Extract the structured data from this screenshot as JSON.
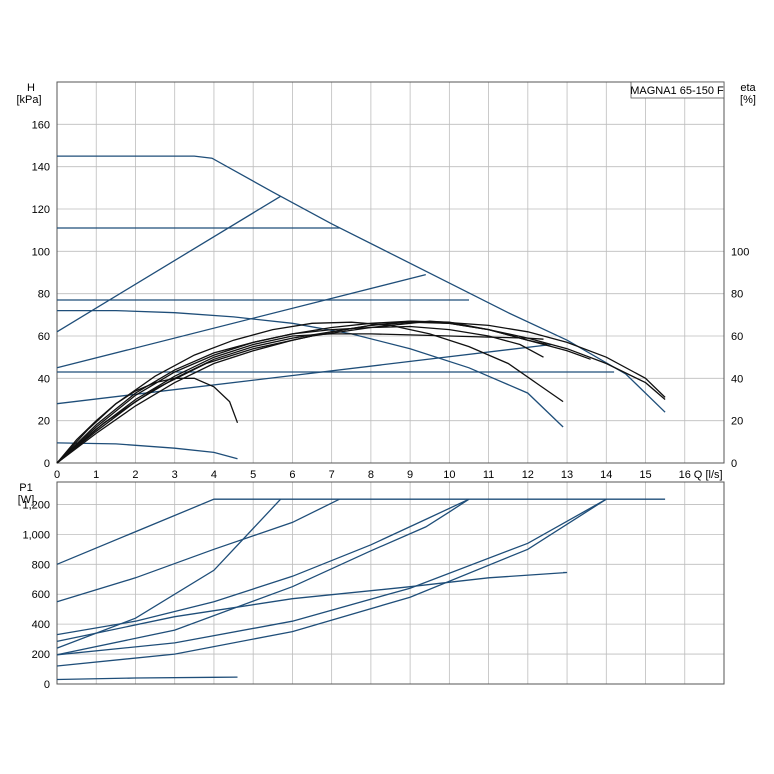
{
  "chart_data": [
    {
      "type": "line",
      "model_label": "MAGNA1 65-150 F",
      "ylabel": "H",
      "yunit": "[kPa]",
      "y2label": "eta",
      "y2unit": "[%]",
      "xlabel": "Q",
      "xunit": "[l/s]",
      "xlim": [
        0,
        17
      ],
      "ylim": [
        0,
        180
      ],
      "y2lim": [
        0,
        180
      ],
      "xticks": [
        0,
        1,
        2,
        3,
        4,
        5,
        6,
        7,
        8,
        9,
        10,
        11,
        12,
        13,
        14,
        15,
        16
      ],
      "yticks": [
        0,
        20,
        40,
        60,
        80,
        100,
        120,
        140,
        160
      ],
      "y2ticks": [
        0,
        20,
        40,
        60,
        80,
        100
      ],
      "head_series": [
        {
          "points": [
            [
              0,
              145
            ],
            [
              3.5,
              145
            ],
            [
              3.95,
              144
            ],
            [
              5.5,
              128
            ],
            [
              7,
              113
            ],
            [
              8.5,
              99
            ],
            [
              10,
              85
            ],
            [
              11.5,
              71
            ],
            [
              13,
              58
            ],
            [
              14.5,
              42
            ],
            [
              15.5,
              24
            ]
          ]
        },
        {
          "points": [
            [
              0,
              111
            ],
            [
              7.2,
              111
            ]
          ]
        },
        {
          "points": [
            [
              0,
              77
            ],
            [
              10.5,
              77
            ]
          ]
        },
        {
          "points": [
            [
              0,
              43
            ],
            [
              14.2,
              43
            ]
          ]
        },
        {
          "points": [
            [
              0,
              72
            ],
            [
              1.5,
              72
            ],
            [
              3,
              71
            ],
            [
              4.5,
              69
            ],
            [
              6,
              66
            ],
            [
              7.5,
              61
            ],
            [
              9,
              54
            ],
            [
              10.5,
              45
            ],
            [
              12,
              33
            ],
            [
              12.9,
              17
            ]
          ]
        },
        {
          "points": [
            [
              0,
              9.5
            ],
            [
              1.5,
              9
            ],
            [
              3,
              7
            ],
            [
              4,
              5
            ],
            [
              4.6,
              2
            ]
          ]
        },
        {
          "points": [
            [
              0,
              62
            ],
            [
              5.7,
              126
            ]
          ]
        },
        {
          "points": [
            [
              0,
              45
            ],
            [
              9.4,
              89
            ]
          ]
        },
        {
          "points": [
            [
              0,
              28
            ],
            [
              12.6,
              56
            ]
          ]
        }
      ],
      "eta_series": [
        {
          "points": [
            [
              0,
              0
            ],
            [
              0.5,
              11
            ],
            [
              1,
              20
            ],
            [
              1.5,
              28
            ],
            [
              2,
              34
            ],
            [
              2.5,
              38
            ],
            [
              3,
              40
            ],
            [
              3.5,
              40
            ],
            [
              4,
              36
            ],
            [
              4.4,
              29
            ],
            [
              4.6,
              19
            ]
          ]
        },
        {
          "points": [
            [
              0,
              0
            ],
            [
              0.8,
              16
            ],
            [
              1.5,
              28
            ],
            [
              2.5,
              41
            ],
            [
              3.5,
              51
            ],
            [
              4.5,
              58
            ],
            [
              5.5,
              63
            ],
            [
              6.5,
              66
            ],
            [
              7.5,
              66.5
            ],
            [
              8.5,
              65
            ],
            [
              9.5,
              61
            ],
            [
              10.5,
              55
            ],
            [
              11.5,
              47
            ],
            [
              12.2,
              38
            ],
            [
              12.9,
              29
            ]
          ]
        },
        {
          "points": [
            [
              0,
              0
            ],
            [
              1,
              18
            ],
            [
              2,
              33
            ],
            [
              3,
              44
            ],
            [
              4,
              52
            ],
            [
              5,
              57
            ],
            [
              6,
              61
            ],
            [
              7,
              63
            ],
            [
              8,
              64
            ],
            [
              9,
              64.5
            ],
            [
              10,
              63
            ],
            [
              11,
              60
            ],
            [
              11.8,
              56
            ],
            [
              12.4,
              50
            ]
          ]
        },
        {
          "points": [
            [
              0,
              0
            ],
            [
              1,
              17
            ],
            [
              2,
              32
            ],
            [
              3,
              43
            ],
            [
              4,
              51
            ],
            [
              5,
              57
            ],
            [
              6,
              61
            ],
            [
              7,
              64
            ],
            [
              8,
              66
            ],
            [
              9,
              67
            ],
            [
              10,
              66
            ],
            [
              11,
              63
            ],
            [
              12,
              58
            ],
            [
              12.5,
              56
            ]
          ]
        },
        {
          "points": [
            [
              0,
              0
            ],
            [
              1,
              16
            ],
            [
              2,
              30
            ],
            [
              3,
              41
            ],
            [
              4,
              50
            ],
            [
              5,
              56
            ],
            [
              6,
              60
            ],
            [
              7,
              61
            ],
            [
              8,
              61
            ],
            [
              9,
              60.5
            ],
            [
              10,
              60
            ],
            [
              11,
              59.5
            ],
            [
              12,
              59
            ],
            [
              12.4,
              58.5
            ]
          ]
        },
        {
          "points": [
            [
              0,
              0
            ],
            [
              1,
              15
            ],
            [
              2,
              29
            ],
            [
              3,
              40
            ],
            [
              4,
              49
            ],
            [
              5,
              55
            ],
            [
              6,
              59
            ],
            [
              7,
              62
            ],
            [
              8,
              65
            ],
            [
              9,
              67
            ],
            [
              10,
              66.5
            ],
            [
              11,
              63
            ],
            [
              12,
              58
            ],
            [
              13,
              53
            ],
            [
              13.6,
              49
            ]
          ]
        },
        {
          "points": [
            [
              0,
              0
            ],
            [
              1.2,
              19
            ],
            [
              2.5,
              35
            ],
            [
              3.8,
              47
            ],
            [
              5,
              54
            ],
            [
              6.5,
              60
            ],
            [
              8,
              64
            ],
            [
              9.5,
              67
            ],
            [
              11,
              65
            ],
            [
              12,
              62
            ],
            [
              13,
              57
            ],
            [
              14,
              50
            ],
            [
              15,
              40
            ],
            [
              15.5,
              31
            ]
          ]
        },
        {
          "points": [
            [
              0,
              0
            ],
            [
              1,
              14
            ],
            [
              2,
              27
            ],
            [
              3,
              38
            ],
            [
              4,
              47
            ],
            [
              5,
              53
            ],
            [
              6,
              58
            ],
            [
              7,
              62
            ],
            [
              8,
              65
            ],
            [
              9,
              66.5
            ],
            [
              10,
              66
            ],
            [
              11,
              63
            ],
            [
              12,
              59
            ],
            [
              13,
              54
            ],
            [
              14,
              47
            ],
            [
              15,
              38
            ],
            [
              15.5,
              30
            ]
          ]
        }
      ]
    },
    {
      "type": "line",
      "ylabel": "P1",
      "yunit": "[W]",
      "xlim": [
        0,
        17
      ],
      "ylim": [
        0,
        1350
      ],
      "yticks": [
        0,
        200,
        400,
        600,
        800,
        1000,
        1200
      ],
      "ytick_labels": [
        "0",
        "200",
        "400",
        "600",
        "800",
        "1,000",
        "1,200"
      ],
      "power_series": [
        {
          "points": [
            [
              0,
              800
            ],
            [
              4,
              1235
            ],
            [
              15.5,
              1235
            ]
          ]
        },
        {
          "points": [
            [
              0,
              550
            ],
            [
              2,
              710
            ],
            [
              4,
              900
            ],
            [
              6,
              1080
            ],
            [
              7.2,
              1235
            ]
          ]
        },
        {
          "points": [
            [
              0,
              330
            ],
            [
              2,
              420
            ],
            [
              4,
              550
            ],
            [
              6,
              720
            ],
            [
              8,
              930
            ],
            [
              9.4,
              1100
            ],
            [
              10.5,
              1235
            ]
          ]
        },
        {
          "points": [
            [
              0,
              195
            ],
            [
              3,
              275
            ],
            [
              6,
              420
            ],
            [
              9,
              640
            ],
            [
              12,
              940
            ],
            [
              14,
              1235
            ]
          ]
        },
        {
          "points": [
            [
              0,
              240
            ],
            [
              2,
              440
            ],
            [
              4,
              760
            ],
            [
              5.7,
              1235
            ]
          ]
        },
        {
          "points": [
            [
              0,
              195
            ],
            [
              3,
              360
            ],
            [
              6,
              650
            ],
            [
              8,
              890
            ],
            [
              9.4,
              1050
            ],
            [
              10,
              1150
            ],
            [
              10.5,
              1235
            ]
          ]
        },
        {
          "points": [
            [
              0,
              120
            ],
            [
              3,
              200
            ],
            [
              6,
              350
            ],
            [
              9,
              580
            ],
            [
              12,
              900
            ],
            [
              14,
              1235
            ]
          ]
        },
        {
          "points": [
            [
              0,
              285
            ],
            [
              3,
              450
            ],
            [
              6,
              570
            ],
            [
              9,
              650
            ],
            [
              11,
              710
            ],
            [
              13,
              745
            ],
            [
              12.9,
              745
            ]
          ]
        },
        {
          "points": [
            [
              0,
              30
            ],
            [
              2,
              40
            ],
            [
              4,
              45
            ],
            [
              4.6,
              46
            ]
          ]
        }
      ]
    }
  ]
}
